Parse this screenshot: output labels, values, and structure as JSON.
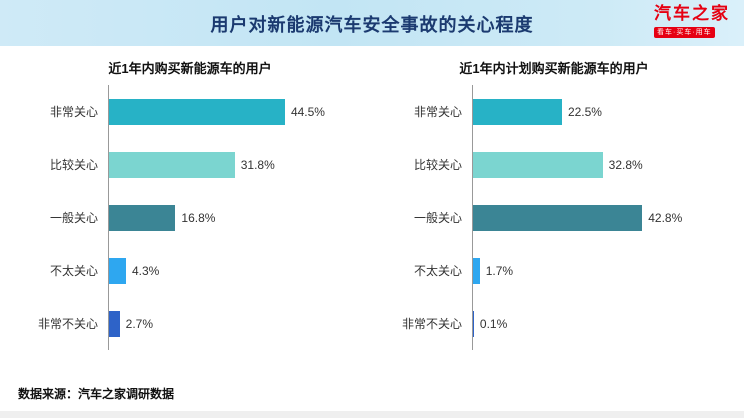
{
  "header": {
    "title": "用户对新能源汽车安全事故的关心程度",
    "logo": {
      "brand": "汽车之家",
      "tagline": "看车·买车·用车",
      "brand_color": "#e60012"
    },
    "background_color": "#c2e5f4",
    "title_color": "#1b3a70"
  },
  "footer": {
    "source": "数据来源：汽车之家调研数据"
  },
  "chart_data": [
    {
      "type": "bar",
      "orientation": "horizontal",
      "title": "近1年内购买新能源车的用户",
      "categories": [
        "非常关心",
        "比较关心",
        "一般关心",
        "不太关心",
        "非常不关心"
      ],
      "values": [
        44.5,
        31.8,
        16.8,
        4.3,
        2.7
      ],
      "value_labels": [
        "44.5%",
        "31.8%",
        "16.8%",
        "4.3%",
        "2.7%"
      ],
      "xlim": [
        0,
        65
      ],
      "grid": false,
      "legend": "none",
      "bar_colors": [
        "#27b2c6",
        "#7bd5d0",
        "#3b8595",
        "#2ea7f0",
        "#2e63c8"
      ]
    },
    {
      "type": "bar",
      "orientation": "horizontal",
      "title": "近1年内计划购买新能源车的用户",
      "categories": [
        "非常关心",
        "比较关心",
        "一般关心",
        "不太关心",
        "非常不关心"
      ],
      "values": [
        22.5,
        32.8,
        42.8,
        1.7,
        0.1
      ],
      "value_labels": [
        "22.5%",
        "32.8%",
        "42.8%",
        "1.7%",
        "0.1%"
      ],
      "xlim": [
        0,
        65
      ],
      "grid": false,
      "legend": "none",
      "bar_colors": [
        "#27b2c6",
        "#7bd5d0",
        "#3b8595",
        "#2ea7f0",
        "#2e63c8"
      ]
    }
  ]
}
